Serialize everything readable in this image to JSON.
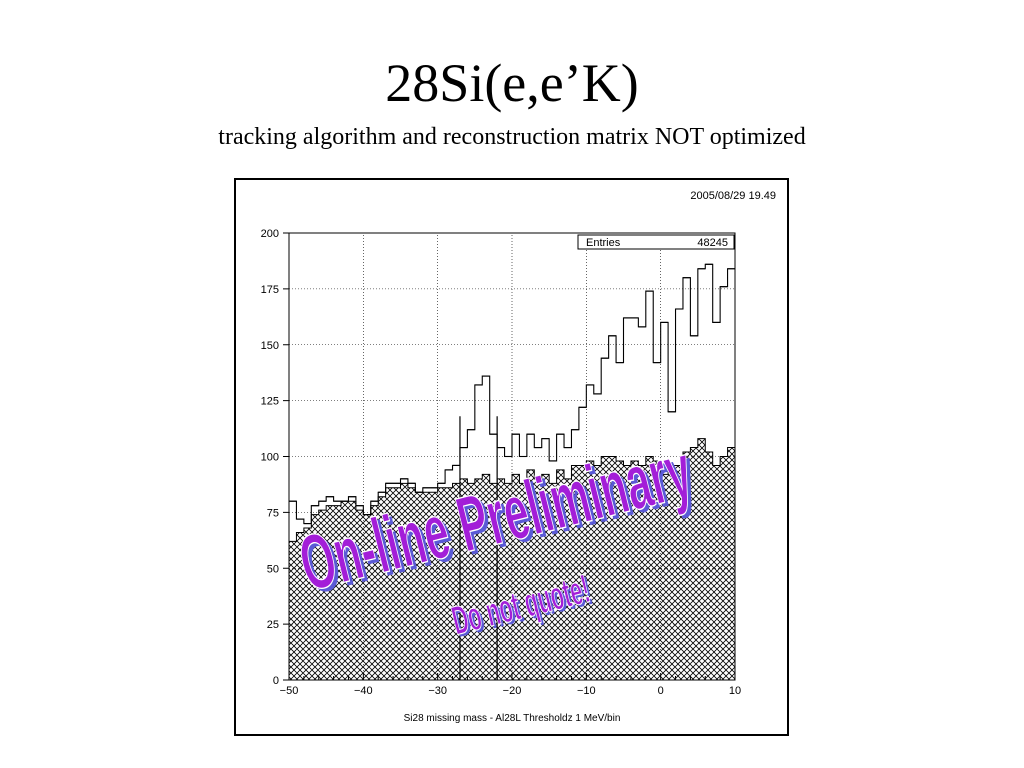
{
  "slide": {
    "title": "28Si(e,e’K)",
    "subtitle": "tracking algorithm and reconstruction matrix NOT optimized"
  },
  "plot_header": {
    "timestamp": "2005/08/29  19.49",
    "stats_label": "Entries",
    "stats_value": "48245"
  },
  "watermark": {
    "main": "On-line Preliminary",
    "sub": "Do not quote!",
    "color": "#a31ed8",
    "shadow_color": "#5a5ad6"
  },
  "chart_data": {
    "type": "bar",
    "xlabel": "Si28 missing mass - Al28L Thresholdz 1 MeV/bin",
    "xlim": [
      -50,
      10
    ],
    "ylim": [
      0,
      200
    ],
    "x_ticks": [
      -50,
      -40,
      -30,
      -20,
      -10,
      0,
      10
    ],
    "x_tick_labels": [
      "−50",
      "−40",
      "−30",
      "−20",
      "−10",
      "0",
      "10"
    ],
    "y_ticks": [
      0,
      25,
      50,
      75,
      100,
      125,
      150,
      175,
      200
    ],
    "y_tick_labels": [
      "0",
      "25",
      "50",
      "75",
      "100",
      "125",
      "150",
      "175",
      "200"
    ],
    "grid": true,
    "bin_edges_start": -50,
    "bin_width": 1,
    "series": [
      {
        "style": "outline",
        "values": [
          80,
          72,
          70,
          78,
          80,
          82,
          80,
          80,
          82,
          78,
          74,
          80,
          84,
          88,
          88,
          90,
          88,
          84,
          86,
          86,
          88,
          94,
          96,
          104,
          112,
          132,
          136,
          110,
          104,
          100,
          110,
          100,
          110,
          104,
          108,
          98,
          110,
          104,
          112,
          122,
          132,
          128,
          144,
          154,
          142,
          162,
          162,
          158,
          174,
          142,
          160,
          120,
          166,
          180,
          154,
          184,
          186,
          160,
          176,
          184,
          176,
          188
        ]
      },
      {
        "style": "hatched",
        "values": [
          62,
          66,
          68,
          74,
          76,
          78,
          78,
          80,
          80,
          76,
          74,
          78,
          82,
          86,
          86,
          88,
          86,
          84,
          84,
          84,
          86,
          86,
          88,
          90,
          88,
          90,
          92,
          88,
          90,
          88,
          92,
          88,
          94,
          90,
          92,
          88,
          94,
          90,
          96,
          96,
          98,
          96,
          100,
          100,
          98,
          96,
          98,
          96,
          100,
          98,
          92,
          96,
          96,
          102,
          104,
          108,
          102,
          96,
          100,
          104,
          94,
          98
        ]
      }
    ],
    "vertical_lines": [
      -27,
      -22
    ]
  }
}
